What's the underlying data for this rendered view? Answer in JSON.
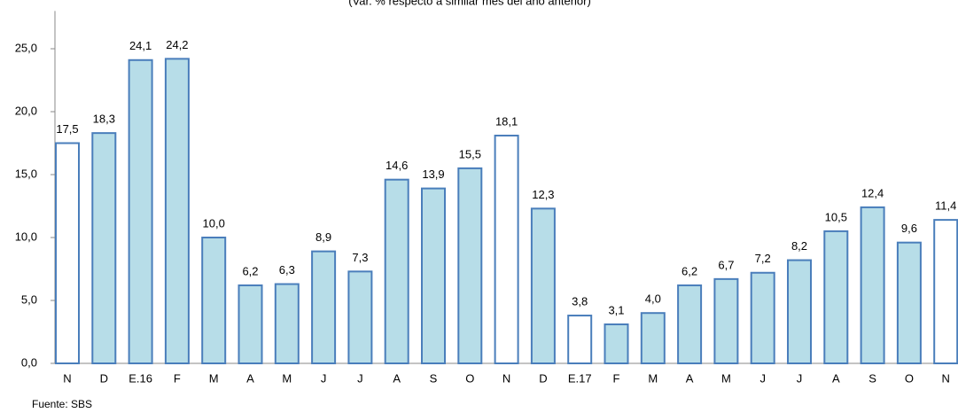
{
  "chart_data": {
    "type": "bar",
    "subtitle": "(Var. % respecto a similar mes del año anterior)",
    "source": "Fuente: SBS",
    "categories": [
      "N",
      "D",
      "E.16",
      "F",
      "M",
      "A",
      "M",
      "J",
      "J",
      "A",
      "S",
      "O",
      "N",
      "D",
      "E.17",
      "F",
      "M",
      "A",
      "M",
      "J",
      "J",
      "A",
      "S",
      "O",
      "N"
    ],
    "values": [
      17.5,
      18.3,
      24.1,
      24.2,
      10.0,
      6.2,
      6.3,
      8.9,
      7.3,
      14.6,
      13.9,
      15.5,
      18.1,
      12.3,
      3.8,
      3.1,
      4.0,
      6.2,
      6.7,
      7.2,
      8.2,
      10.5,
      12.4,
      9.6,
      11.4
    ],
    "value_labels": [
      "17,5",
      "18,3",
      "24,1",
      "24,2",
      "10,0",
      "6,2",
      "6,3",
      "8,9",
      "7,3",
      "14,6",
      "13,9",
      "15,5",
      "18,1",
      "12,3",
      "3,8",
      "3,1",
      "4,0",
      "6,2",
      "6,7",
      "7,2",
      "8,2",
      "10,5",
      "12,4",
      "9,6",
      "11,4"
    ],
    "colors": [
      "#ffffff",
      "#b7dde8",
      "#b7dde8",
      "#b7dde8",
      "#b7dde8",
      "#b7dde8",
      "#b7dde8",
      "#b7dde8",
      "#b7dde8",
      "#b7dde8",
      "#b7dde8",
      "#b7dde8",
      "#ffffff",
      "#b7dde8",
      "#ffffff",
      "#b7dde8",
      "#b7dde8",
      "#b7dde8",
      "#b7dde8",
      "#b7dde8",
      "#b7dde8",
      "#b7dde8",
      "#b7dde8",
      "#b7dde8",
      "#ffffff"
    ],
    "edgecolor": "#4a7ebb",
    "ylim": [
      0,
      28
    ],
    "yticks": [
      {
        "value": 0,
        "label": "0,0"
      },
      {
        "value": 5,
        "label": "5,0"
      },
      {
        "value": 10,
        "label": "10,0"
      },
      {
        "value": 15,
        "label": "15,0"
      },
      {
        "value": 20,
        "label": "20,0"
      },
      {
        "value": 25,
        "label": "25,0"
      }
    ]
  }
}
